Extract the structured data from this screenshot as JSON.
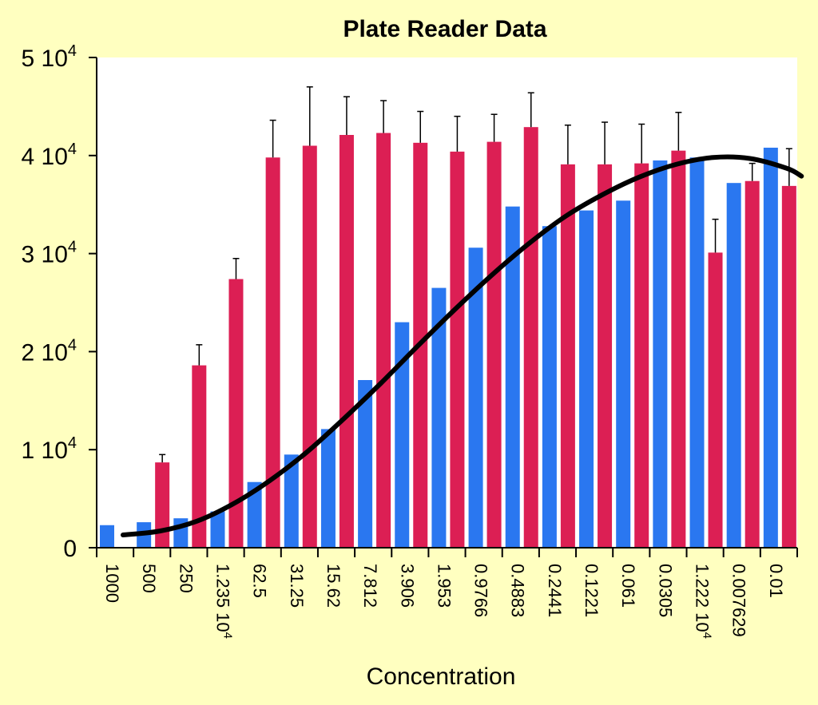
{
  "chart_data": {
    "type": "bar",
    "title": "Plate Reader Data",
    "xlabel": "Concentration",
    "ylabel": "",
    "ylim": [
      0,
      50000
    ],
    "grid": false,
    "legend": "none",
    "colors": {
      "background": "#ffffc0",
      "plot_bg": "#ffffff",
      "series1": "#dc1f54",
      "series2": "#2a77f0",
      "fit": "#000000"
    },
    "y_ticks": [
      {
        "value": 0,
        "base": "0",
        "exp": ""
      },
      {
        "value": 10000,
        "base": "1 10",
        "exp": "4"
      },
      {
        "value": 20000,
        "base": "2 10",
        "exp": "4"
      },
      {
        "value": 30000,
        "base": "3 10",
        "exp": "4"
      },
      {
        "value": 40000,
        "base": "4 10",
        "exp": "4"
      },
      {
        "value": 50000,
        "base": "5 10",
        "exp": "4"
      }
    ],
    "categories": [
      {
        "base": "1000",
        "exp": ""
      },
      {
        "base": "500",
        "exp": ""
      },
      {
        "base": "250",
        "exp": ""
      },
      {
        "base": "1.235 10",
        "exp": "4"
      },
      {
        "base": "62.5",
        "exp": ""
      },
      {
        "base": "31.25",
        "exp": ""
      },
      {
        "base": "15.62",
        "exp": ""
      },
      {
        "base": "7.812",
        "exp": ""
      },
      {
        "base": "3.906",
        "exp": ""
      },
      {
        "base": "1.953",
        "exp": ""
      },
      {
        "base": "0.9766",
        "exp": ""
      },
      {
        "base": "0.4883",
        "exp": ""
      },
      {
        "base": "0.2441",
        "exp": ""
      },
      {
        "base": "0.1221",
        "exp": ""
      },
      {
        "base": "0.061",
        "exp": ""
      },
      {
        "base": "0.0305",
        "exp": ""
      },
      {
        "base": "1.222 10",
        "exp": "4"
      },
      {
        "base": "0.007629",
        "exp": ""
      },
      {
        "base": "0.01",
        "exp": ""
      }
    ],
    "series": [
      {
        "name": "red",
        "values": [
          null,
          8700,
          18600,
          27400,
          39800,
          41000,
          42100,
          42300,
          41300,
          40400,
          41400,
          42900,
          39100,
          39100,
          39200,
          40500,
          30100,
          37400,
          36900
        ],
        "errors": [
          null,
          800,
          2100,
          2100,
          3800,
          6000,
          3900,
          3300,
          3200,
          3600,
          2800,
          3500,
          4000,
          4300,
          4000,
          3900,
          3400,
          1800,
          3800
        ]
      },
      {
        "name": "blue",
        "values": [
          2300,
          2600,
          3000,
          3700,
          6700,
          9500,
          12100,
          17100,
          23000,
          26500,
          30600,
          34800,
          32800,
          34400,
          35400,
          39500,
          39800,
          37200,
          40800
        ],
        "errors": []
      }
    ],
    "fit_curve": {
      "name": "fit",
      "x": [
        0,
        1,
        2,
        3,
        4,
        5,
        6,
        7,
        8,
        9,
        10,
        11,
        12,
        13,
        14,
        15,
        16,
        17,
        18,
        18.4
      ],
      "y": [
        1300,
        1700,
        2700,
        4500,
        6900,
        9800,
        13200,
        16800,
        20600,
        24300,
        27800,
        31000,
        33800,
        36000,
        37800,
        39100,
        39800,
        39700,
        38700,
        37900
      ]
    }
  }
}
